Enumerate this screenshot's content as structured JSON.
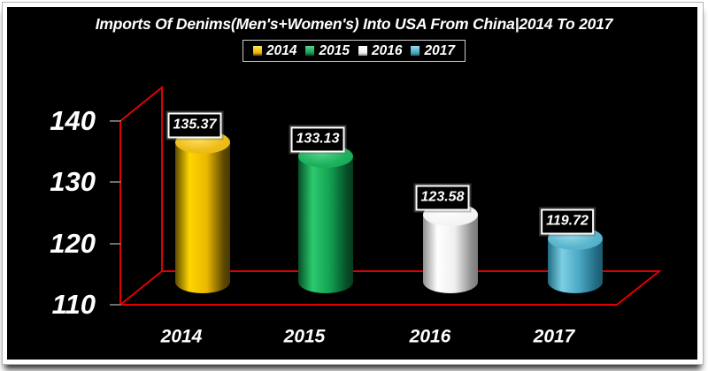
{
  "title": "Imports Of Denims(Men's+Women's) Into USA From China|2014 To 2017",
  "chart_data": {
    "type": "bar",
    "subtype": "3d-cylinder",
    "title": "Imports Of Denims(Men's+Women's) Into USA From China|2014 To 2017",
    "categories": [
      "2014",
      "2015",
      "2016",
      "2017"
    ],
    "values": [
      135.37,
      133.13,
      123.58,
      119.72
    ],
    "data_labels": [
      "135.37",
      "133.13",
      "123.58",
      "119.72"
    ],
    "xlabel": "",
    "ylabel": "",
    "ylim": [
      110,
      140
    ],
    "yticks": [
      140,
      130,
      120,
      110
    ],
    "grid": false,
    "legend_position": "top",
    "legend_entries": [
      "2014",
      "2015",
      "2016",
      "2017"
    ],
    "background_color": "#000000",
    "plot_frame_color": "#e00000",
    "series_colors": [
      "#eab600",
      "#12a152",
      "#f2f2f2",
      "#4aa6c3"
    ]
  },
  "colors": {
    "axis_red": "#e00000",
    "tick_gray": "#6e6e6e",
    "text_white": "#ffffff",
    "panel_black": "#000000",
    "frame_border": "#b4b4b4",
    "legend_border": "#cfcfcf",
    "label_box_border": "#ffffff",
    "series": [
      {
        "name": "2014",
        "dark": "#5e4a00",
        "dark2": "#483800",
        "mid": "#eab600",
        "light": "#ffd600",
        "cap": "#edbe1c",
        "cap_light": "#ffe35e"
      },
      {
        "name": "2015",
        "dark": "#064f28",
        "dark2": "#053d1f",
        "mid": "#12a152",
        "light": "#2cc96e",
        "cap": "#1db35e",
        "cap_light": "#5ad48d"
      },
      {
        "name": "2016",
        "dark": "#8f8f8f",
        "dark2": "#7a7a7a",
        "mid": "#efefef",
        "light": "#ffffff",
        "cap": "#f5f5f5",
        "cap_light": "#ffffff"
      },
      {
        "name": "2017",
        "dark": "#226b83",
        "dark2": "#1c5a6e",
        "mid": "#4aa6c3",
        "light": "#7bcfe3",
        "cap": "#5cb6cd",
        "cap_light": "#94dcea"
      }
    ]
  }
}
